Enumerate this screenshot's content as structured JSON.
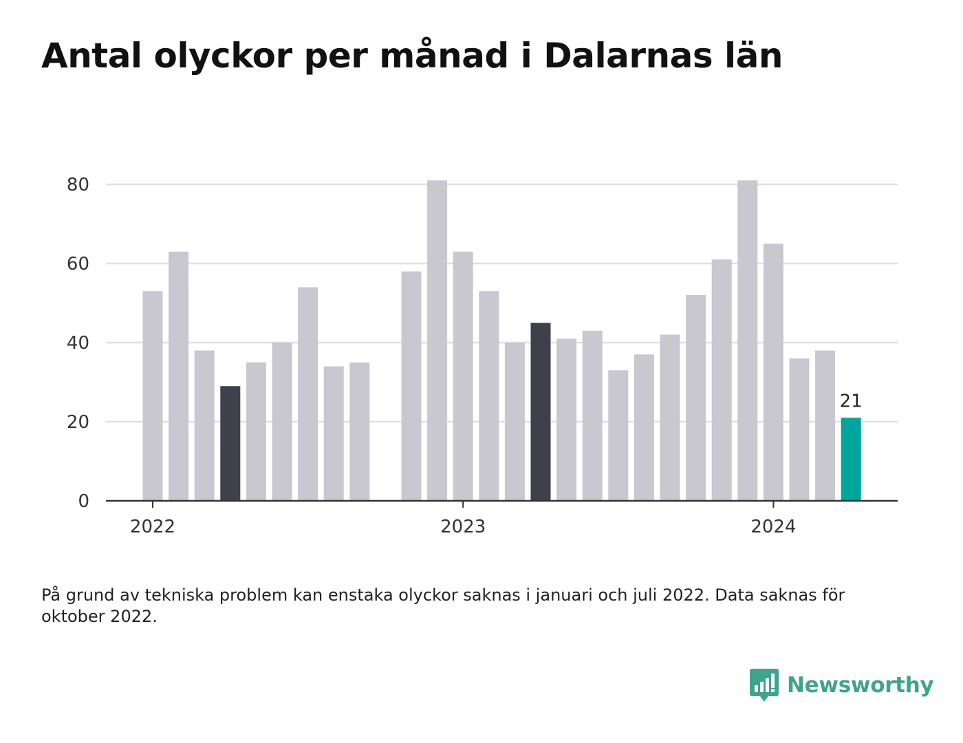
{
  "title": "Antal olyckor per månad i Dalarnas län",
  "note": "På grund av tekniska problem kan enstaka olyckor saknas i januari och juli 2022. Data saknas för oktober 2022.",
  "brand": {
    "name": "Newsworthy",
    "icon": "newsworthy-logo-icon"
  },
  "colors": {
    "bar": "#c9c8d1",
    "highlight": "#403f4c",
    "latest": "#00a59b",
    "grid": "#e0e0e0",
    "axis": "#333333"
  },
  "chart_data": {
    "type": "bar",
    "ylim": [
      0,
      80
    ],
    "yticks": [
      0,
      20,
      40,
      60,
      80
    ],
    "grid": true,
    "x_tick_labels": [
      {
        "label": "2022",
        "index": 0
      },
      {
        "label": "2023",
        "index": 12
      },
      {
        "label": "2024",
        "index": 24
      }
    ],
    "bars": [
      {
        "month": "2022-01",
        "value": 53,
        "style": "normal"
      },
      {
        "month": "2022-02",
        "value": 63,
        "style": "normal"
      },
      {
        "month": "2022-03",
        "value": 38,
        "style": "normal"
      },
      {
        "month": "2022-04",
        "value": 29,
        "style": "highlight"
      },
      {
        "month": "2022-05",
        "value": 35,
        "style": "normal"
      },
      {
        "month": "2022-06",
        "value": 40,
        "style": "normal"
      },
      {
        "month": "2022-07",
        "value": 54,
        "style": "normal"
      },
      {
        "month": "2022-08",
        "value": 34,
        "style": "normal"
      },
      {
        "month": "2022-09",
        "value": 35,
        "style": "normal"
      },
      {
        "month": "2022-10",
        "value": null,
        "style": "missing"
      },
      {
        "month": "2022-11",
        "value": 58,
        "style": "normal"
      },
      {
        "month": "2022-12",
        "value": 81,
        "style": "normal"
      },
      {
        "month": "2023-01",
        "value": 63,
        "style": "normal"
      },
      {
        "month": "2023-02",
        "value": 53,
        "style": "normal"
      },
      {
        "month": "2023-03",
        "value": 40,
        "style": "normal"
      },
      {
        "month": "2023-04",
        "value": 45,
        "style": "highlight"
      },
      {
        "month": "2023-05",
        "value": 41,
        "style": "normal"
      },
      {
        "month": "2023-06",
        "value": 43,
        "style": "normal"
      },
      {
        "month": "2023-07",
        "value": 33,
        "style": "normal"
      },
      {
        "month": "2023-08",
        "value": 37,
        "style": "normal"
      },
      {
        "month": "2023-09",
        "value": 42,
        "style": "normal"
      },
      {
        "month": "2023-10",
        "value": 52,
        "style": "normal"
      },
      {
        "month": "2023-11",
        "value": 61,
        "style": "normal"
      },
      {
        "month": "2023-12",
        "value": 81,
        "style": "normal"
      },
      {
        "month": "2024-01",
        "value": 65,
        "style": "normal"
      },
      {
        "month": "2024-02",
        "value": 36,
        "style": "normal"
      },
      {
        "month": "2024-03",
        "value": 38,
        "style": "normal"
      },
      {
        "month": "2024-04",
        "value": 21,
        "style": "latest",
        "label": "21"
      }
    ]
  }
}
